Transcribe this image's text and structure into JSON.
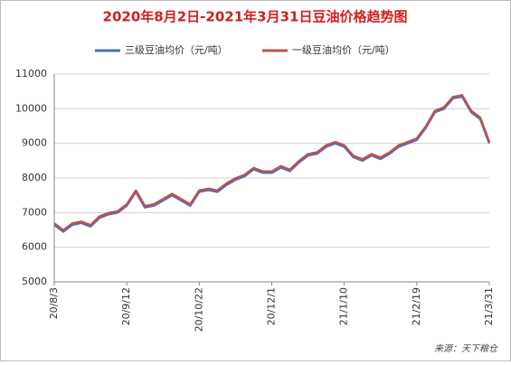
{
  "chart_data": {
    "type": "line",
    "title": "2020年8月2日-2021年3月31日豆油价格趋势图",
    "source": "来源：天下粮仓",
    "categories": [
      "20/8/3",
      null,
      null,
      null,
      null,
      null,
      null,
      null,
      "20/9/12",
      null,
      null,
      null,
      null,
      null,
      null,
      null,
      "20/10/22",
      null,
      null,
      null,
      null,
      null,
      null,
      null,
      "20/12/1",
      null,
      null,
      null,
      null,
      null,
      null,
      null,
      "21/1/10",
      null,
      null,
      null,
      null,
      null,
      null,
      null,
      "21/2/19",
      null,
      null,
      null,
      null,
      null,
      null,
      null,
      "21/3/31"
    ],
    "series": [
      {
        "name": "三级豆油均价（元/吨）",
        "color": "#4472c4",
        "values": [
          6650,
          6450,
          6650,
          6700,
          6600,
          6850,
          6950,
          7000,
          7200,
          7600,
          7150,
          7200,
          7350,
          7500,
          7350,
          7200,
          7600,
          7650,
          7600,
          7800,
          7950,
          8050,
          8250,
          8150,
          8150,
          8300,
          8200,
          8450,
          8650,
          8700,
          8900,
          9000,
          8900,
          8600,
          8500,
          8650,
          8550,
          8700,
          8900,
          9000,
          9100,
          9450,
          9900,
          10000,
          10300,
          10350,
          9900,
          9700,
          9000
        ]
      },
      {
        "name": "一级豆油均价（元/吨）",
        "color": "#c0504d",
        "values": [
          6690,
          6490,
          6690,
          6740,
          6640,
          6890,
          6990,
          7040,
          7240,
          7640,
          7190,
          7240,
          7390,
          7540,
          7390,
          7240,
          7640,
          7690,
          7640,
          7840,
          7990,
          8090,
          8290,
          8190,
          8190,
          8340,
          8240,
          8490,
          8690,
          8740,
          8940,
          9040,
          8940,
          8640,
          8540,
          8690,
          8590,
          8740,
          8940,
          9040,
          9140,
          9490,
          9940,
          10040,
          10340,
          10390,
          9940,
          9740,
          9040
        ]
      }
    ],
    "ylim": [
      5000,
      11000
    ],
    "yticks": [
      5000,
      6000,
      7000,
      8000,
      9000,
      10000,
      11000
    ],
    "grid": true,
    "legend": "top"
  }
}
